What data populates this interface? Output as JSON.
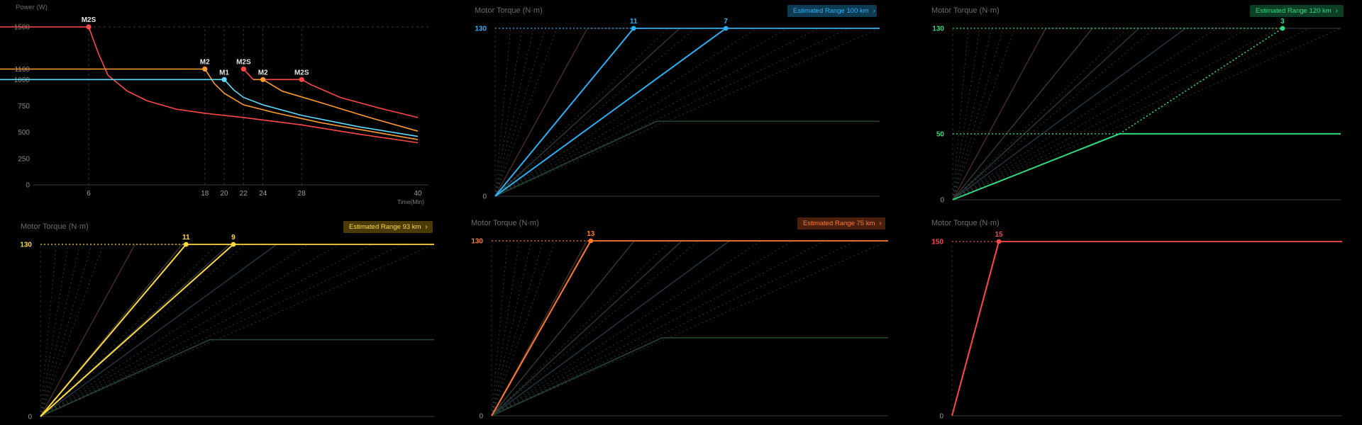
{
  "chart_data": [
    {
      "type": "line",
      "ylabel": "Power (W)",
      "xlabel": "Time(Min)",
      "xlim": [
        0,
        40
      ],
      "ylim": [
        0,
        1500
      ],
      "yticks": [
        "1500",
        "1100",
        "1000",
        "750",
        "500",
        "250",
        "0"
      ],
      "ytick_values": [
        1500,
        1100,
        1000,
        750,
        500,
        250,
        0
      ],
      "xticks": [
        "6",
        "18",
        "20",
        "22",
        "24",
        "28",
        "40"
      ],
      "xtick_values": [
        6,
        18,
        20,
        22,
        24,
        28,
        40
      ],
      "series": [
        {
          "color": "#ff4848",
          "points": [
            [
              -5.5,
              1500
            ],
            [
              6,
              1500
            ],
            [
              7,
              1250
            ],
            [
              8,
              1040
            ],
            [
              10,
              890
            ],
            [
              12,
              800
            ],
            [
              15,
              720
            ],
            [
              18,
              680
            ],
            [
              22,
              640
            ],
            [
              28,
              570
            ],
            [
              34,
              480
            ],
            [
              40,
              400
            ]
          ]
        },
        {
          "color": "#ff9a2e",
          "points": [
            [
              -5.5,
              1100
            ],
            [
              18,
              1100
            ],
            [
              19,
              960
            ],
            [
              20,
              870
            ],
            [
              22,
              760
            ],
            [
              25,
              690
            ],
            [
              30,
              590
            ],
            [
              35,
              510
            ],
            [
              40,
              430
            ]
          ]
        },
        {
          "color": "#5fdcff",
          "points": [
            [
              -5.5,
              1000
            ],
            [
              20,
              1000
            ],
            [
              21,
              900
            ],
            [
              22,
              830
            ],
            [
              24,
              760
            ],
            [
              28,
              660
            ],
            [
              34,
              550
            ],
            [
              40,
              460
            ]
          ]
        },
        {
          "color": "#ff4848",
          "points": [
            [
              22,
              1100
            ],
            [
              23,
              1000
            ]
          ]
        },
        {
          "color": "#ff9a2e",
          "points": [
            [
              23,
              1000
            ],
            [
              24,
              1000
            ],
            [
              26,
              890
            ],
            [
              30,
              780
            ],
            [
              35,
              640
            ],
            [
              40,
              510
            ]
          ]
        },
        {
          "color": "#ff4848",
          "points": [
            [
              24,
              1000
            ],
            [
              28,
              1000
            ],
            [
              29,
              950
            ],
            [
              32,
              830
            ],
            [
              36,
              730
            ],
            [
              40,
              640
            ]
          ]
        }
      ],
      "markers": [
        {
          "label": "M2S",
          "x": 6,
          "y": 1500,
          "color": "#ff4848"
        },
        {
          "label": "M2",
          "x": 18,
          "y": 1100,
          "color": "#ff9a2e"
        },
        {
          "label": "M2S",
          "x": 22,
          "y": 1100,
          "color": "#ff4848"
        },
        {
          "label": "M1",
          "x": 20,
          "y": 1000,
          "color": "#5fdcff"
        },
        {
          "label": "M2",
          "x": 24,
          "y": 1000,
          "color": "#ff9a2e"
        },
        {
          "label": "M2S",
          "x": 28,
          "y": 1000,
          "color": "#ff4848"
        }
      ]
    },
    {
      "type": "line",
      "ylabel": "Motor Torque (N·m)",
      "badge": "Estimated Range 100 km",
      "accent": "#2ab0f5",
      "ytick_top": "130",
      "ytick_top_value": 130,
      "ytick_mid": null,
      "ytick_zero": "0",
      "ylim": [
        0,
        130
      ],
      "x_end": 100,
      "highlights": [
        {
          "label": "11",
          "x": 36
        },
        {
          "label": "7",
          "x": 60
        }
      ],
      "green_level": 58,
      "green_x": 42,
      "accent_level": 130,
      "brown_x": 24
    },
    {
      "type": "line",
      "ylabel": "Motor Torque (N·m)",
      "badge": "Estimated Range 120 km",
      "accent": "#2fd982",
      "ytick_top": "130",
      "ytick_top_value": 130,
      "ytick_mid": "50",
      "ytick_mid_value": 50,
      "ytick_zero": "0",
      "ylim": [
        0,
        130
      ],
      "x_end": 100,
      "highlights": [
        {
          "label": "3",
          "x": 85,
          "dashed": true
        }
      ],
      "green_level": 50,
      "green_x": 43,
      "brown_x": 24
    },
    {
      "type": "line",
      "ylabel": "Motor Torque (N·m)",
      "badge": "Estimated Range 93 km",
      "accent": "#ffd93a",
      "ytick_top": "130",
      "ytick_top_value": 130,
      "ytick_mid": null,
      "ytick_zero": "0",
      "ylim": [
        0,
        130
      ],
      "x_end": 100,
      "highlights": [
        {
          "label": "11",
          "x": 37
        },
        {
          "label": "9",
          "x": 49
        }
      ],
      "green_level": 58,
      "green_x": 43,
      "brown_x": 24
    },
    {
      "type": "line",
      "ylabel": "Motor Torque (N·m)",
      "badge": "Estimated Range 75 km",
      "accent": "#ff7a2a",
      "ytick_top": "130",
      "ytick_top_value": 130,
      "ytick_mid": null,
      "ytick_zero": "0",
      "ylim": [
        0,
        130
      ],
      "x_end": 100,
      "highlights": [
        {
          "label": "13",
          "x": 25
        }
      ],
      "green_level": 58,
      "green_x": 43,
      "brown_x": 24
    },
    {
      "type": "line",
      "ylabel": "Motor Torque (N·m)",
      "badge": null,
      "accent": "#ff4848",
      "ytick_top": "150",
      "ytick_top_value": 150,
      "ytick_mid": null,
      "ytick_zero": "0",
      "ylim": [
        0,
        150
      ],
      "x_end": 100,
      "highlights": [
        {
          "label": "15",
          "x": 12
        }
      ],
      "ghost": false
    }
  ],
  "colors": {
    "badge_blue_bg": "#0e3a52",
    "badge_green_bg": "#0c3f26",
    "badge_yellow_bg": "#4a3a06",
    "badge_orange_bg": "#4a1f0c"
  }
}
